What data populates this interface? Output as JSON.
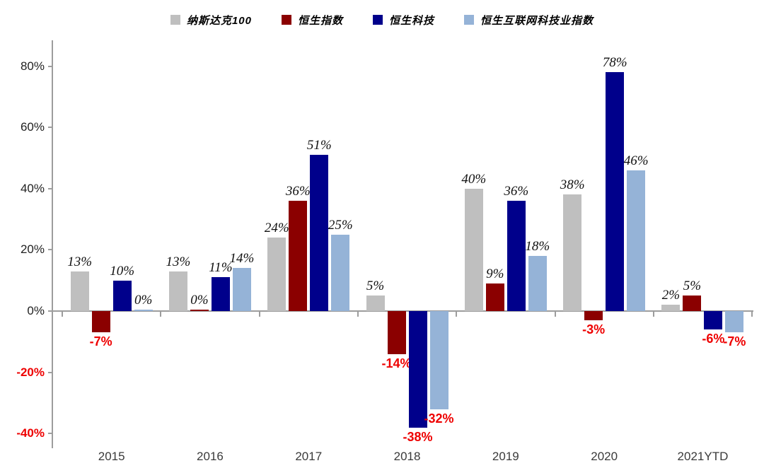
{
  "chart_data": {
    "type": "bar",
    "title": "",
    "categories": [
      "2015",
      "2016",
      "2017",
      "2018",
      "2019",
      "2020",
      "2021YTD"
    ],
    "series": [
      {
        "name": "纳斯达克100",
        "color": "#bfbfbf",
        "values": [
          13,
          13,
          24,
          5,
          40,
          38,
          2
        ],
        "labels": [
          "13%",
          "13%",
          "24%",
          "5%",
          "40%",
          "38%",
          "2%"
        ]
      },
      {
        "name": "恒生指数",
        "color": "#8b0000",
        "values": [
          -7,
          0,
          36,
          -14,
          9,
          -3,
          5
        ],
        "labels": [
          "-7%",
          "0%",
          "36%",
          "-14%",
          "9%",
          "-3%",
          "5%"
        ]
      },
      {
        "name": "恒生科技",
        "color": "#00008b",
        "values": [
          10,
          11,
          51,
          -38,
          36,
          78,
          -6
        ],
        "labels": [
          "10%",
          "11%",
          "51%",
          "-38%",
          "36%",
          "78%",
          "-6%"
        ]
      },
      {
        "name": "恒生互联网科技业指数",
        "color": "#95b3d7",
        "values": [
          0,
          14,
          25,
          -32,
          18,
          46,
          -7
        ],
        "labels": [
          "0%",
          "14%",
          "25%",
          "-32%",
          "18%",
          "46%",
          "-7%"
        ]
      }
    ],
    "y_ticks": [
      {
        "label": "80%",
        "value": 80
      },
      {
        "label": "60%",
        "value": 60
      },
      {
        "label": "40%",
        "value": 40
      },
      {
        "label": "20%",
        "value": 20
      },
      {
        "label": "0%",
        "value": 0
      },
      {
        "label": "-20%",
        "value": -20
      },
      {
        "label": "-40%",
        "value": -40
      }
    ],
    "ylim": [
      -40,
      80
    ],
    "xlabel": "",
    "ylabel": "",
    "grid": false,
    "legend_position": "top",
    "colors": {
      "axis": "#9d9d9d",
      "positive_label": "#111111",
      "negative_label": "#ee0000"
    }
  }
}
